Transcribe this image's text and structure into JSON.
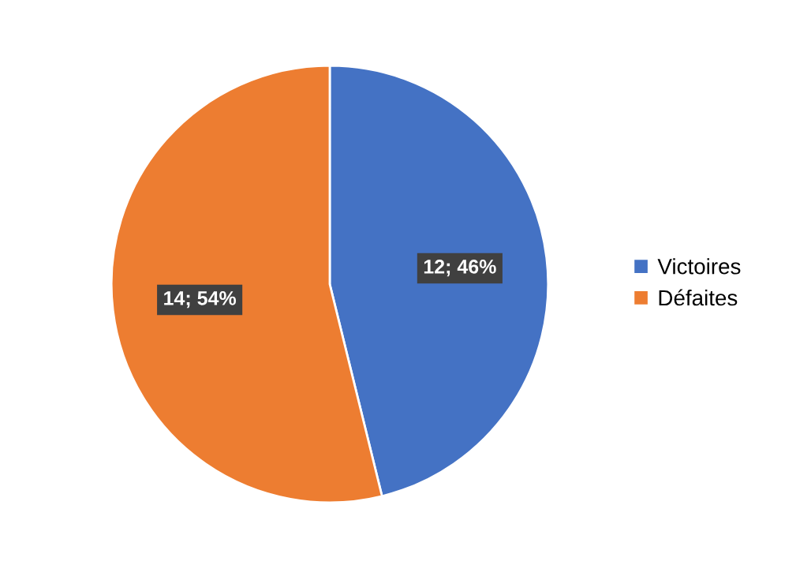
{
  "chart_data": {
    "type": "pie",
    "categories": [
      "Victoires",
      "Défaites"
    ],
    "values": [
      12,
      14
    ],
    "colors": [
      "#4472c4",
      "#ed7d31"
    ],
    "value_labels": [
      "12; 46%",
      "14; 54%"
    ],
    "legend": "right"
  }
}
